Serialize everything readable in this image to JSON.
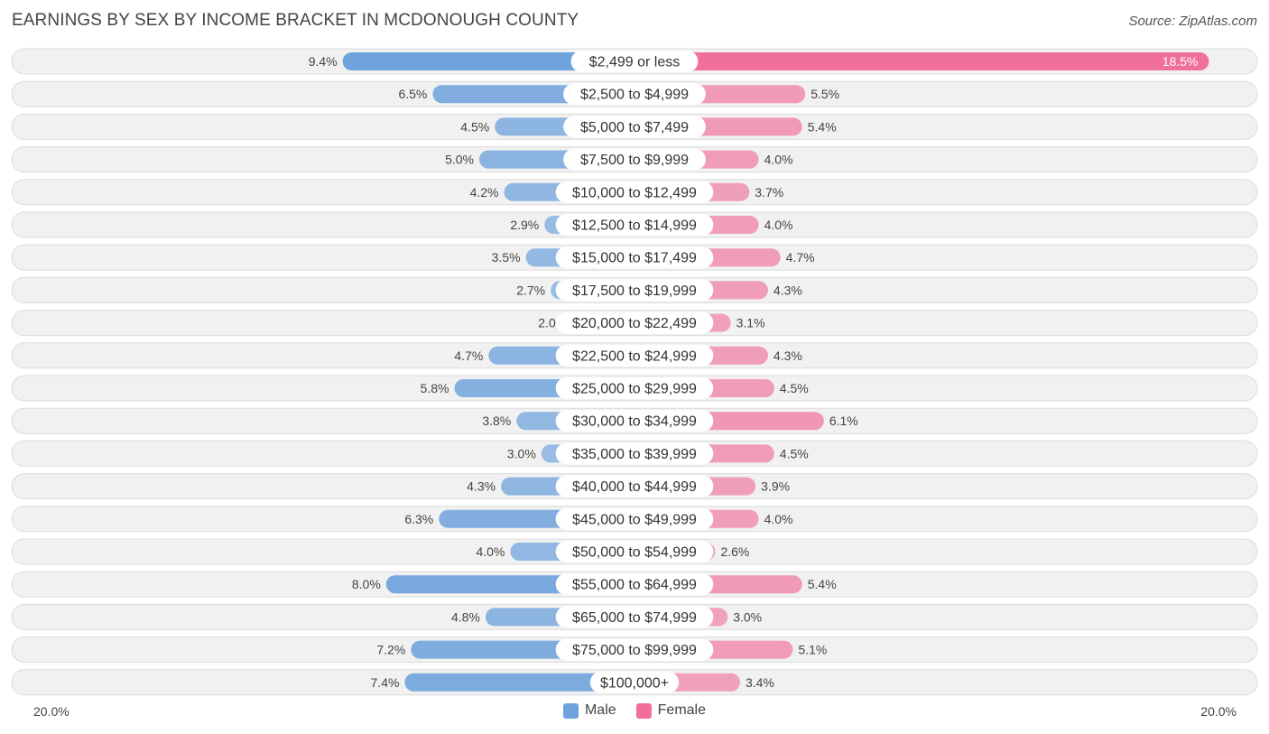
{
  "header": {
    "title": "EARNINGS BY SEX BY INCOME BRACKET IN MCDONOUGH COUNTY",
    "source": "Source: ZipAtlas.com"
  },
  "axis": {
    "left_label": "20.0%",
    "right_label": "20.0%"
  },
  "legend": [
    {
      "label": "Male",
      "color": "#6fa3dc"
    },
    {
      "label": "Female",
      "color": "#f07099"
    }
  ],
  "chart_data": {
    "type": "bar",
    "orientation": "horizontal-diverging",
    "title": "EARNINGS BY SEX BY INCOME BRACKET IN MCDONOUGH COUNTY",
    "xlim": [
      -20,
      20
    ],
    "unit": "%",
    "categories": [
      "$2,499 or less",
      "$2,500 to $4,999",
      "$5,000 to $7,499",
      "$7,500 to $9,999",
      "$10,000 to $12,499",
      "$12,500 to $14,999",
      "$15,000 to $17,499",
      "$17,500 to $19,999",
      "$20,000 to $22,499",
      "$22,500 to $24,999",
      "$25,000 to $29,999",
      "$30,000 to $34,999",
      "$35,000 to $39,999",
      "$40,000 to $44,999",
      "$45,000 to $49,999",
      "$50,000 to $54,999",
      "$55,000 to $64,999",
      "$65,000 to $74,999",
      "$75,000 to $99,999",
      "$100,000+"
    ],
    "series": [
      {
        "name": "Male",
        "color": "#6fa3dc",
        "values": [
          9.4,
          6.5,
          4.5,
          5.0,
          4.2,
          2.9,
          3.5,
          2.7,
          2.0,
          4.7,
          5.8,
          3.8,
          3.0,
          4.3,
          6.3,
          4.0,
          8.0,
          4.8,
          7.2,
          7.4
        ],
        "labels": [
          "9.4%",
          "6.5%",
          "4.5%",
          "5.0%",
          "4.2%",
          "2.9%",
          "3.5%",
          "2.7%",
          "2.0%",
          "4.7%",
          "5.8%",
          "3.8%",
          "3.0%",
          "4.3%",
          "6.3%",
          "4.0%",
          "8.0%",
          "4.8%",
          "7.2%",
          "7.4%"
        ]
      },
      {
        "name": "Female",
        "color": "#f07099",
        "values": [
          18.5,
          5.5,
          5.4,
          4.0,
          3.7,
          4.0,
          4.7,
          4.3,
          3.1,
          4.3,
          4.5,
          6.1,
          4.5,
          3.9,
          4.0,
          2.6,
          5.4,
          3.0,
          5.1,
          3.4
        ],
        "labels": [
          "18.5%",
          "5.5%",
          "5.4%",
          "4.0%",
          "3.7%",
          "4.0%",
          "4.7%",
          "4.3%",
          "3.1%",
          "4.3%",
          "4.5%",
          "6.1%",
          "4.5%",
          "3.9%",
          "4.0%",
          "2.6%",
          "5.4%",
          "3.0%",
          "5.1%",
          "3.4%"
        ]
      }
    ]
  }
}
